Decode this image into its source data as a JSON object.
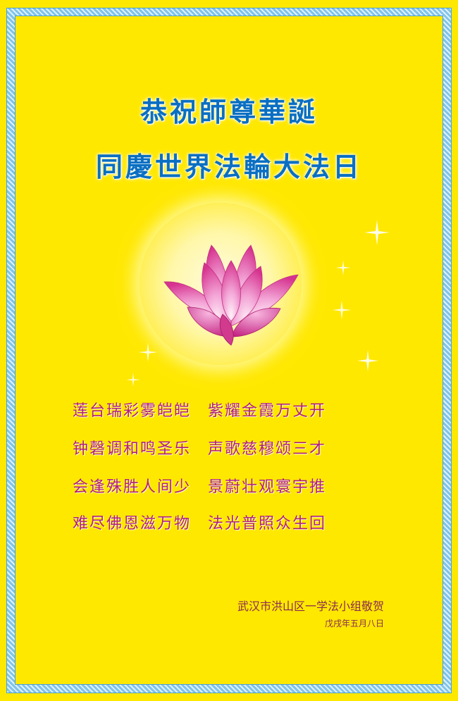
{
  "title_line1": "恭祝師尊華誕",
  "title_line2": "同慶世界法輪大法日",
  "poem": [
    "莲台瑞彩雾皑皑　紫耀金霞万丈开",
    "钟磬调和鸣圣乐　声歌慈穆颂三才",
    "会逢殊胜人间少　景蔚壮观寰宇推",
    "难尽佛恩滋万物　法光普照众生回"
  ],
  "signature": "武汉市洪山区一学法小组敬贺",
  "date": "戊戌年五月八日",
  "colors": {
    "background": "#FFE800",
    "title": "#0a6fc2",
    "poem": "#b0207a",
    "border": "#7fc4ea"
  },
  "icons": [
    "lotus-flower",
    "sparkle"
  ]
}
